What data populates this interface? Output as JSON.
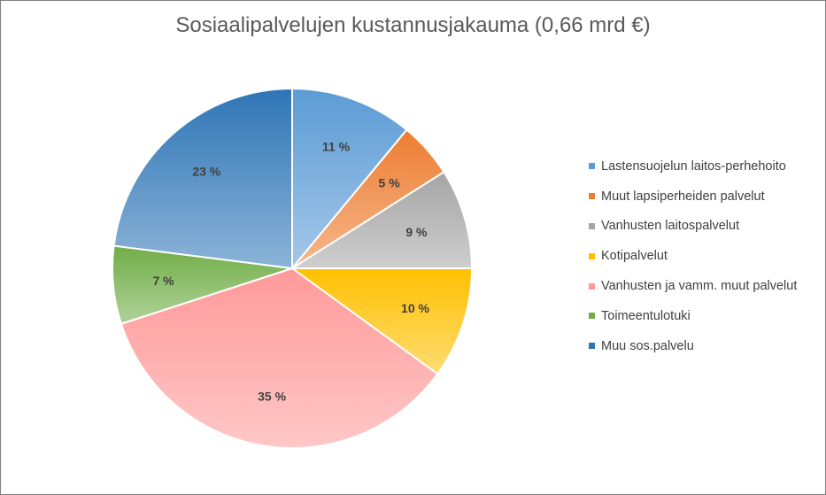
{
  "chart_data": {
    "type": "pie",
    "title": "Sosiaalipalvelujen kustannusjakauma (0,66 mrd €)",
    "legend_position": "right",
    "slices": [
      {
        "name": "Lastensuojelun laitos-perhehoito",
        "value": 11,
        "label": "11 %",
        "color": "#5b9bd5"
      },
      {
        "name": "Muut lapsiperheiden palvelut",
        "value": 5,
        "label": "5 %",
        "color": "#ed7d31"
      },
      {
        "name": "Vanhusten laitospalvelut",
        "value": 9,
        "label": "9 %",
        "color": "#a5a5a5"
      },
      {
        "name": "Kotipalvelut",
        "value": 10,
        "label": "10 %",
        "color": "#ffc000"
      },
      {
        "name": "Vanhusten ja vamm. muut palvelut",
        "value": 35,
        "label": "35 %",
        "color": "#ff9999"
      },
      {
        "name": "Toimeentulotuki",
        "value": 7,
        "label": "7 %",
        "color": "#70ad47"
      },
      {
        "name": "Muu sos.palvelu",
        "value": 23,
        "label": "23 %",
        "color": "#2e75b6"
      }
    ]
  }
}
